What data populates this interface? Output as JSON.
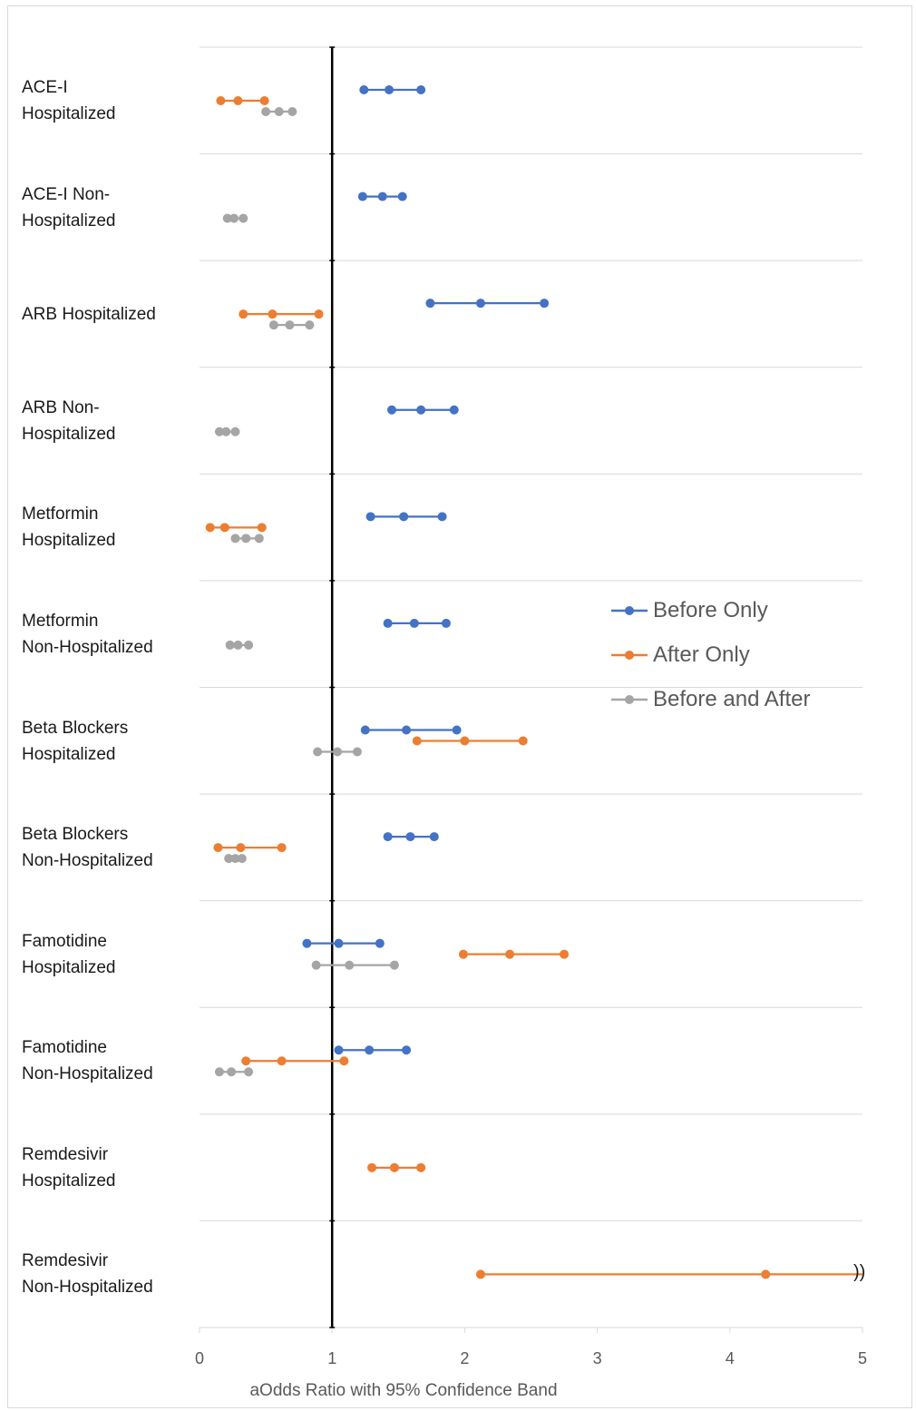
{
  "chart_data": {
    "type": "dumbbell",
    "xlabel": "aOdds Ratio with 95% Confidence Band",
    "xlim": [
      0,
      5
    ],
    "xticks": [
      "0",
      "1",
      "2",
      "3",
      "4",
      "5"
    ],
    "reference_line": 1,
    "grid": true,
    "legend_position": "right",
    "categories": [
      "ACE-I\nHospitalized",
      "ACE-I Non-\nHospitalized",
      "ARB Hospitalized",
      "ARB Non-\nHospitalized",
      "Metformin\nHospitalized",
      "Metformin\nNon-Hospitalized",
      "Beta Blockers\nHospitalized",
      "Beta Blockers\nNon-Hospitalized",
      "Famotidine\nHospitalized",
      "Famotidine\nNon-Hospitalized",
      "Remdesivir\nHospitalized",
      "Remdesivir\nNon-Hospitalized"
    ],
    "series": [
      {
        "name": "Before Only",
        "color": "#4472c4",
        "values": [
          {
            "low": 1.24,
            "est": 1.43,
            "high": 1.67
          },
          {
            "low": 1.23,
            "est": 1.38,
            "high": 1.53
          },
          {
            "low": 1.74,
            "est": 2.12,
            "high": 2.6
          },
          {
            "low": 1.45,
            "est": 1.67,
            "high": 1.92
          },
          {
            "low": 1.29,
            "est": 1.54,
            "high": 1.83
          },
          {
            "low": 1.42,
            "est": 1.62,
            "high": 1.86
          },
          {
            "low": 1.25,
            "est": 1.56,
            "high": 1.94
          },
          {
            "low": 1.42,
            "est": 1.59,
            "high": 1.77
          },
          {
            "low": 0.81,
            "est": 1.05,
            "high": 1.36
          },
          {
            "low": 1.05,
            "est": 1.28,
            "high": 1.56
          },
          null,
          null
        ]
      },
      {
        "name": "After Only",
        "color": "#ed7d31",
        "values": [
          {
            "low": 0.16,
            "est": 0.29,
            "high": 0.49
          },
          null,
          {
            "low": 0.33,
            "est": 0.55,
            "high": 0.9
          },
          null,
          {
            "low": 0.08,
            "est": 0.19,
            "high": 0.47
          },
          null,
          {
            "low": 1.64,
            "est": 2.0,
            "high": 2.44
          },
          {
            "low": 0.14,
            "est": 0.31,
            "high": 0.62
          },
          {
            "low": 1.99,
            "est": 2.34,
            "high": 2.75
          },
          {
            "low": 0.35,
            "est": 0.62,
            "high": 1.09
          },
          {
            "low": 1.3,
            "est": 1.47,
            "high": 1.67
          },
          {
            "low": 2.12,
            "est": 4.27,
            "high": 5.0
          }
        ]
      },
      {
        "name": "Before and After",
        "color": "#a5a5a5",
        "values": [
          {
            "low": 0.5,
            "est": 0.6,
            "high": 0.7
          },
          {
            "low": 0.21,
            "est": 0.26,
            "high": 0.33
          },
          {
            "low": 0.56,
            "est": 0.68,
            "high": 0.83
          },
          {
            "low": 0.15,
            "est": 0.2,
            "high": 0.27
          },
          {
            "low": 0.27,
            "est": 0.35,
            "high": 0.45
          },
          {
            "low": 0.23,
            "est": 0.29,
            "high": 0.37
          },
          {
            "low": 0.89,
            "est": 1.04,
            "high": 1.19
          },
          {
            "low": 0.22,
            "est": 0.27,
            "high": 0.32
          },
          {
            "low": 0.88,
            "est": 1.13,
            "high": 1.47
          },
          {
            "low": 0.15,
            "est": 0.24,
            "high": 0.37
          },
          null,
          null
        ]
      }
    ],
    "axis_break_marker": "))"
  }
}
